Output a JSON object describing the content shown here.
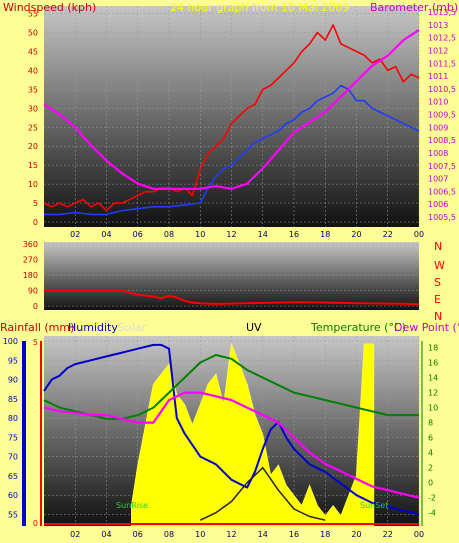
{
  "colors": {
    "background": "#fdfd96",
    "wind_gust": "#ff0000",
    "wind_avg": "#1e3cff",
    "barometer": "#ff00ff",
    "direction": "#ff0000",
    "humidity": "#0000cc",
    "solar": "#ffff00",
    "uv": "#222222",
    "temperature": "#008000",
    "dew_point": "#ff00ff",
    "rainfall": "#ff0000"
  },
  "header": {
    "wind_label": "Windspeed (kph)",
    "baro_label": "Barometer (mb)",
    "subtitle": "24 hour graph from 10 Mai 2009"
  },
  "compass": [
    "N",
    "W",
    "S",
    "E",
    "N"
  ],
  "footer": {
    "rainfall_label": "Rainfall (mm)",
    "humidity_label": "Humidity",
    "solar_label": "Solar",
    "uv_label": "UV",
    "temp_label": "Temperature (°C)",
    "dew_label": "Dew Point (°C)",
    "sunrise_label": "SunRise",
    "sunset_label": "SunSet"
  },
  "chart_data": [
    {
      "type": "line",
      "name": "wind_baro",
      "x_range": [
        0,
        24
      ],
      "x_ticks": [
        "02",
        "04",
        "06",
        "08",
        "10",
        "12",
        "14",
        "16",
        "18",
        "20",
        "22",
        "00"
      ],
      "ylim_left": [
        0,
        57
      ],
      "y_ticks_left": [
        0,
        5,
        10,
        15,
        20,
        25,
        30,
        35,
        40,
        45,
        50,
        55
      ],
      "ylim_right": [
        1005.5,
        1013.5
      ],
      "y_ticks_right": [
        "1005,5",
        "1006",
        "1006,5",
        "1007",
        "1007,5",
        "1008",
        "1008,5",
        "1009",
        "1009,5",
        "1010",
        "1010,5",
        "1011",
        "1011,5",
        "1012",
        "1012,5",
        "1013",
        "1013,5"
      ],
      "series": [
        {
          "key": "gust",
          "x": [
            0,
            0.5,
            1,
            1.5,
            2,
            2.5,
            3,
            3.5,
            4,
            4.5,
            5,
            5.5,
            6,
            6.5,
            7,
            7.5,
            8,
            8.5,
            9,
            9.5,
            10,
            10.5,
            11,
            11.5,
            12,
            12.5,
            13,
            13.5,
            14,
            14.5,
            15,
            15.5,
            16,
            16.5,
            17,
            17.5,
            18,
            18.5,
            19,
            19.5,
            20,
            20.5,
            21,
            21.5,
            22,
            22.5,
            23,
            23.5,
            24
          ],
          "values": [
            5,
            4,
            5,
            4,
            5,
            6,
            4,
            5,
            3,
            5,
            5,
            6,
            7,
            8,
            8,
            9,
            9,
            8,
            9,
            7,
            14,
            18,
            20,
            22,
            26,
            28,
            30,
            31,
            35,
            36,
            38,
            40,
            42,
            45,
            47,
            50,
            48,
            52,
            47,
            46,
            45,
            44,
            42,
            43,
            40,
            41,
            37,
            39,
            38
          ]
        },
        {
          "key": "avg",
          "x": [
            0,
            1,
            2,
            3,
            4,
            5,
            6,
            7,
            8,
            9,
            10,
            10.5,
            11,
            11.5,
            12,
            12.5,
            13,
            13.5,
            14,
            14.5,
            15,
            15.5,
            16,
            16.5,
            17,
            17.5,
            18,
            18.5,
            19,
            19.5,
            20,
            20.5,
            21,
            21.5,
            22,
            22.5,
            23,
            23.5,
            24
          ],
          "values": [
            2,
            2,
            2.5,
            2,
            2,
            3,
            3.5,
            4,
            4,
            4.5,
            5,
            9,
            12,
            14,
            15,
            17,
            19,
            21,
            22,
            23,
            24,
            26,
            27,
            29,
            30,
            32,
            33,
            34,
            36,
            35,
            32,
            32,
            30,
            29,
            28,
            27,
            26,
            25,
            24
          ]
        },
        {
          "key": "baro",
          "x": [
            0,
            1,
            2,
            3,
            4,
            5,
            6,
            7,
            8,
            9,
            10,
            11,
            12,
            13,
            14,
            15,
            16,
            17,
            18,
            19,
            20,
            21,
            22,
            23,
            24
          ],
          "values": [
            1009.9,
            1009.5,
            1009.0,
            1008.3,
            1007.7,
            1007.2,
            1006.8,
            1006.6,
            1006.6,
            1006.6,
            1006.6,
            1006.7,
            1006.6,
            1006.8,
            1007.4,
            1008.1,
            1008.8,
            1009.2,
            1009.6,
            1010.2,
            1010.8,
            1011.4,
            1011.8,
            1012.4,
            1012.8
          ]
        }
      ]
    },
    {
      "type": "line",
      "name": "wind_direction",
      "x_range": [
        0,
        24
      ],
      "ylim": [
        0,
        360
      ],
      "y_ticks": [
        0,
        90,
        180,
        270,
        360
      ],
      "x": [
        0,
        1,
        2,
        3,
        4,
        5,
        6,
        7,
        7.5,
        8,
        8.5,
        9,
        9.5,
        10,
        11,
        12,
        13,
        14,
        15,
        16,
        17,
        18,
        19,
        20,
        21,
        22,
        23,
        24
      ],
      "values": [
        90,
        90,
        90,
        90,
        90,
        90,
        65,
        55,
        45,
        60,
        50,
        30,
        20,
        15,
        12,
        14,
        16,
        18,
        20,
        22,
        22,
        20,
        18,
        16,
        15,
        14,
        13,
        10
      ]
    },
    {
      "type": "line",
      "name": "weather",
      "x_range": [
        0,
        24
      ],
      "ylim_humidity": [
        52,
        100
      ],
      "y_ticks_humidity": [
        55,
        60,
        65,
        70,
        75,
        80,
        85,
        90,
        95,
        100
      ],
      "ylim_temp": [
        -5.5,
        19
      ],
      "y_ticks_temp": [
        -4,
        -2,
        0,
        2,
        4,
        6,
        8,
        10,
        12,
        14,
        16,
        18
      ],
      "rain_ticks": [
        0,
        5
      ],
      "sunrise_hour": 5.6,
      "sunset_hour": 21.1,
      "series": [
        {
          "key": "humidity",
          "x": [
            0,
            0.5,
            1,
            1.5,
            2,
            3,
            4,
            5,
            6,
            7,
            7.5,
            8,
            8.5,
            9,
            10,
            11,
            12,
            13,
            13.5,
            14,
            14.5,
            15,
            15.5,
            16,
            17,
            18,
            19,
            20,
            21,
            22,
            23,
            24
          ],
          "values": [
            87,
            90,
            91,
            93,
            94,
            95,
            96,
            97,
            98,
            99,
            99,
            98,
            80,
            76,
            70,
            68,
            64,
            62,
            66,
            72,
            77,
            79,
            75,
            72,
            68,
            66,
            63,
            60,
            58,
            57,
            56,
            55
          ]
        },
        {
          "key": "solar",
          "x": [
            5.6,
            6,
            6.5,
            7,
            7.5,
            8,
            8.5,
            9,
            9.5,
            10,
            10.5,
            11,
            11.5,
            12,
            12.5,
            13,
            13.5,
            14,
            14.5,
            15,
            15.5,
            16,
            16.5,
            17,
            17.5,
            18,
            18.5,
            19,
            19.5,
            20,
            20.5,
            21.1
          ],
          "values": [
            2,
            6,
            10,
            14,
            15,
            16,
            13,
            12,
            10,
            12,
            14,
            15,
            12,
            18,
            16,
            14,
            11,
            9,
            5,
            6,
            4,
            3,
            2,
            4,
            2,
            1,
            2,
            1,
            3,
            5,
            18,
            18
          ]
        },
        {
          "key": "uv",
          "x": [
            10,
            11,
            12,
            13,
            14,
            15,
            16,
            17,
            18
          ],
          "values": [
            -5,
            -4,
            -2.5,
            0,
            2,
            -1,
            -3.5,
            -4.5,
            -5
          ]
        },
        {
          "key": "temp",
          "x": [
            0,
            1,
            2,
            3,
            4,
            5,
            6,
            7,
            8,
            9,
            10,
            11,
            12,
            13,
            14,
            15,
            16,
            17,
            18,
            19,
            20,
            21,
            22,
            23,
            24
          ],
          "values": [
            11,
            10,
            9.5,
            9,
            8.5,
            8.5,
            9,
            10,
            12,
            14,
            16,
            17,
            16.5,
            15,
            14,
            13,
            12,
            11.5,
            11,
            10.5,
            10,
            9.5,
            9,
            9,
            9
          ]
        },
        {
          "key": "dew",
          "x": [
            0,
            1,
            2,
            3,
            4,
            5,
            6,
            7,
            8,
            9,
            10,
            11,
            12,
            13,
            14,
            15,
            16,
            17,
            18,
            19,
            20,
            21,
            22,
            23,
            24
          ],
          "values": [
            10,
            9.5,
            9.3,
            9,
            9,
            8.5,
            8,
            8,
            11,
            12,
            12,
            11.5,
            11,
            10,
            9,
            8,
            6,
            4,
            2.5,
            1.5,
            0.5,
            -0.5,
            -1,
            -1.5,
            -2
          ]
        },
        {
          "key": "rain",
          "x": [
            0,
            24
          ],
          "values": [
            0,
            0
          ]
        }
      ]
    }
  ]
}
